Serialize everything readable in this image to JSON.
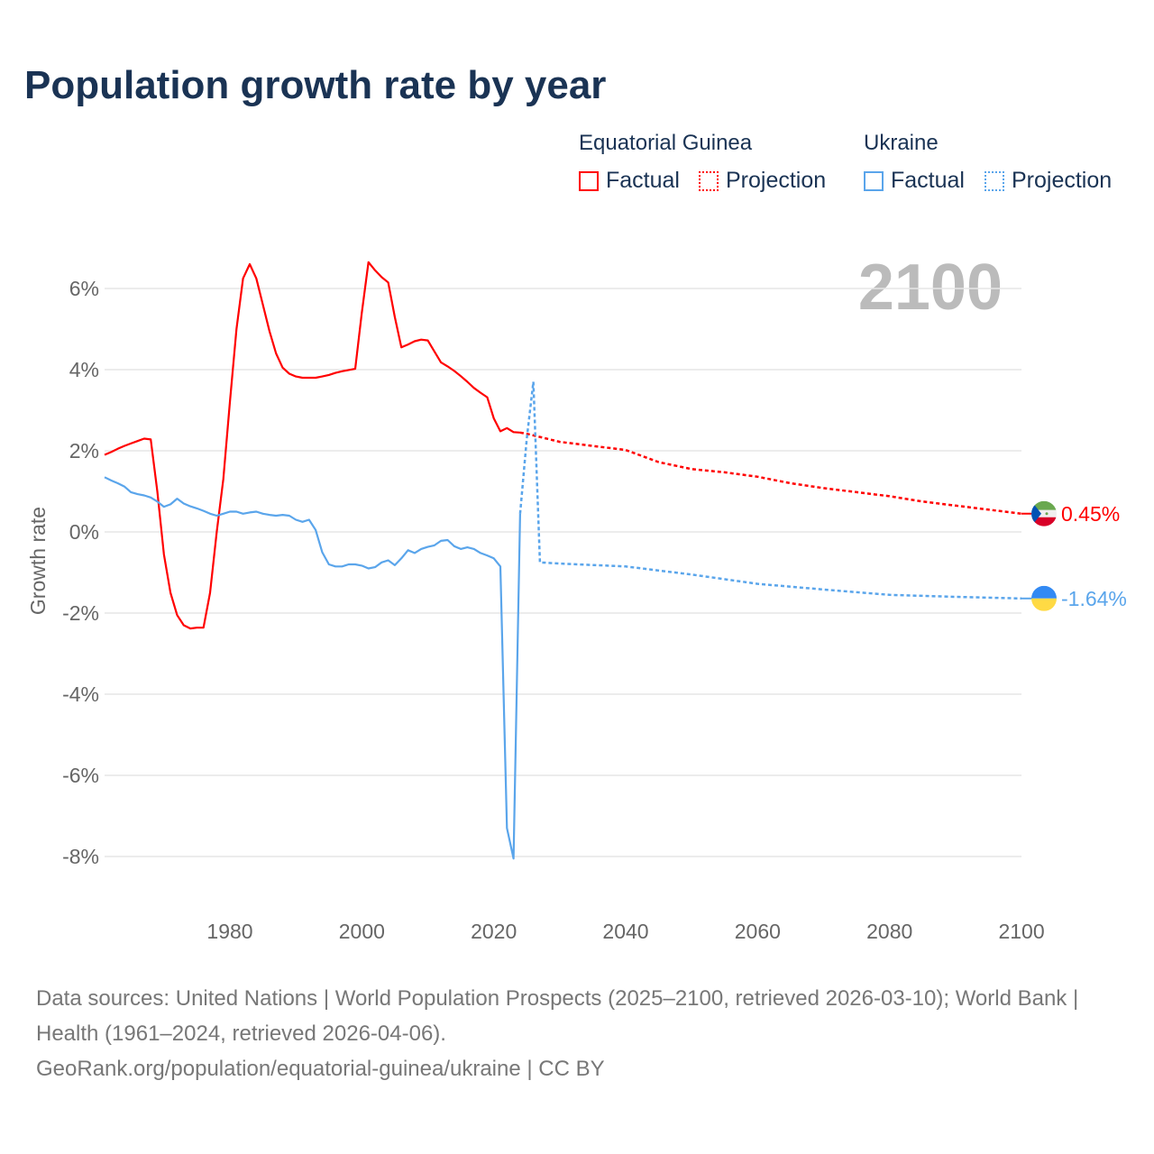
{
  "title": "Population growth rate by year",
  "legend": {
    "groups": [
      {
        "name": "Equatorial Guinea",
        "factual": "Factual",
        "projection": "Projection",
        "color": "#ff0000"
      },
      {
        "name": "Ukraine",
        "factual": "Factual",
        "projection": "Projection",
        "color": "#5aa5eb"
      }
    ]
  },
  "year_label": "2100",
  "source": {
    "line1": "Data sources: United Nations | World Population Prospects (2025–2100, retrieved 2026-03-10); World Bank | Health (1961–2024, retrieved 2026-04-06).",
    "line2": "GeoRank.org/population/equatorial-guinea/ukraine | CC BY"
  },
  "chart_data": {
    "type": "line",
    "title": "Population growth rate by year",
    "xlabel": "",
    "ylabel": "Growth rate",
    "xlim": [
      1961,
      2100
    ],
    "ylim": [
      -9,
      7
    ],
    "xticks": [
      1980,
      2000,
      2020,
      2040,
      2060,
      2080,
      2100
    ],
    "yticks": [
      6,
      4,
      2,
      0,
      -2,
      -4,
      -6,
      -8
    ],
    "ytick_labels": [
      "6%",
      "4%",
      "2%",
      "0%",
      "-2%",
      "-4%",
      "-6%",
      "-8%"
    ],
    "grid": true,
    "series": [
      {
        "name": "Equatorial Guinea",
        "color": "#ff0000",
        "end_label": "0.45%",
        "factual": {
          "x": [
            1961,
            1962,
            1963,
            1964,
            1965,
            1966,
            1967,
            1968,
            1969,
            1970,
            1971,
            1972,
            1973,
            1974,
            1975,
            1976,
            1977,
            1978,
            1979,
            1980,
            1981,
            1982,
            1983,
            1984,
            1985,
            1986,
            1987,
            1988,
            1989,
            1990,
            1991,
            1992,
            1993,
            1994,
            1995,
            1996,
            1997,
            1998,
            1999,
            2000,
            2001,
            2002,
            2003,
            2004,
            2005,
            2006,
            2007,
            2008,
            2009,
            2010,
            2011,
            2012,
            2013,
            2014,
            2015,
            2016,
            2017,
            2018,
            2019,
            2020,
            2021,
            2022,
            2023,
            2024
          ],
          "y": [
            1.9,
            1.97,
            2.05,
            2.12,
            2.18,
            2.24,
            2.3,
            2.28,
            1.0,
            -0.55,
            -1.5,
            -2.05,
            -2.3,
            -2.38,
            -2.36,
            -2.36,
            -1.5,
            0.0,
            1.3,
            3.2,
            5.0,
            6.25,
            6.6,
            6.25,
            5.6,
            4.95,
            4.4,
            4.05,
            3.9,
            3.83,
            3.8,
            3.8,
            3.8,
            3.83,
            3.87,
            3.92,
            3.96,
            3.99,
            4.02,
            5.4,
            6.65,
            6.45,
            6.28,
            6.15,
            5.3,
            4.55,
            4.62,
            4.7,
            4.74,
            4.72,
            4.45,
            4.18,
            4.08,
            3.97,
            3.84,
            3.7,
            3.55,
            3.43,
            3.32,
            2.8,
            2.48,
            2.56,
            2.46,
            2.45
          ]
        },
        "projection": {
          "x": [
            2024,
            2025,
            2030,
            2035,
            2040,
            2045,
            2050,
            2055,
            2060,
            2065,
            2070,
            2075,
            2080,
            2085,
            2090,
            2095,
            2100
          ],
          "y": [
            2.45,
            2.42,
            2.22,
            2.12,
            2.02,
            1.72,
            1.55,
            1.47,
            1.36,
            1.2,
            1.08,
            0.98,
            0.88,
            0.75,
            0.65,
            0.55,
            0.45
          ]
        }
      },
      {
        "name": "Ukraine",
        "color": "#5aa5eb",
        "end_label": "-1.64%",
        "factual": {
          "x": [
            1961,
            1962,
            1963,
            1964,
            1965,
            1966,
            1967,
            1968,
            1969,
            1970,
            1971,
            1972,
            1973,
            1974,
            1975,
            1976,
            1977,
            1978,
            1979,
            1980,
            1981,
            1982,
            1983,
            1984,
            1985,
            1986,
            1987,
            1988,
            1989,
            1990,
            1991,
            1992,
            1993,
            1994,
            1995,
            1996,
            1997,
            1998,
            1999,
            2000,
            2001,
            2002,
            2003,
            2004,
            2005,
            2006,
            2007,
            2008,
            2009,
            2010,
            2011,
            2012,
            2013,
            2014,
            2015,
            2016,
            2017,
            2018,
            2019,
            2020,
            2021,
            2022,
            2023,
            2024
          ],
          "y": [
            1.35,
            1.27,
            1.2,
            1.12,
            0.98,
            0.93,
            0.9,
            0.85,
            0.75,
            0.62,
            0.68,
            0.82,
            0.7,
            0.63,
            0.58,
            0.52,
            0.45,
            0.4,
            0.45,
            0.5,
            0.5,
            0.45,
            0.48,
            0.5,
            0.45,
            0.42,
            0.4,
            0.42,
            0.4,
            0.3,
            0.25,
            0.3,
            0.05,
            -0.5,
            -0.8,
            -0.85,
            -0.85,
            -0.8,
            -0.8,
            -0.83,
            -0.9,
            -0.87,
            -0.75,
            -0.7,
            -0.82,
            -0.65,
            -0.45,
            -0.52,
            -0.42,
            -0.37,
            -0.33,
            -0.22,
            -0.2,
            -0.35,
            -0.42,
            -0.38,
            -0.42,
            -0.52,
            -0.58,
            -0.65,
            -0.85,
            -7.3,
            -8.05,
            0.45
          ]
        },
        "projection": {
          "x": [
            2024,
            2025,
            2026,
            2027,
            2030,
            2040,
            2050,
            2060,
            2070,
            2080,
            2090,
            2100
          ],
          "y": [
            0.45,
            2.3,
            3.7,
            -0.75,
            -0.78,
            -0.85,
            -1.05,
            -1.28,
            -1.42,
            -1.55,
            -1.6,
            -1.64
          ]
        }
      }
    ]
  }
}
